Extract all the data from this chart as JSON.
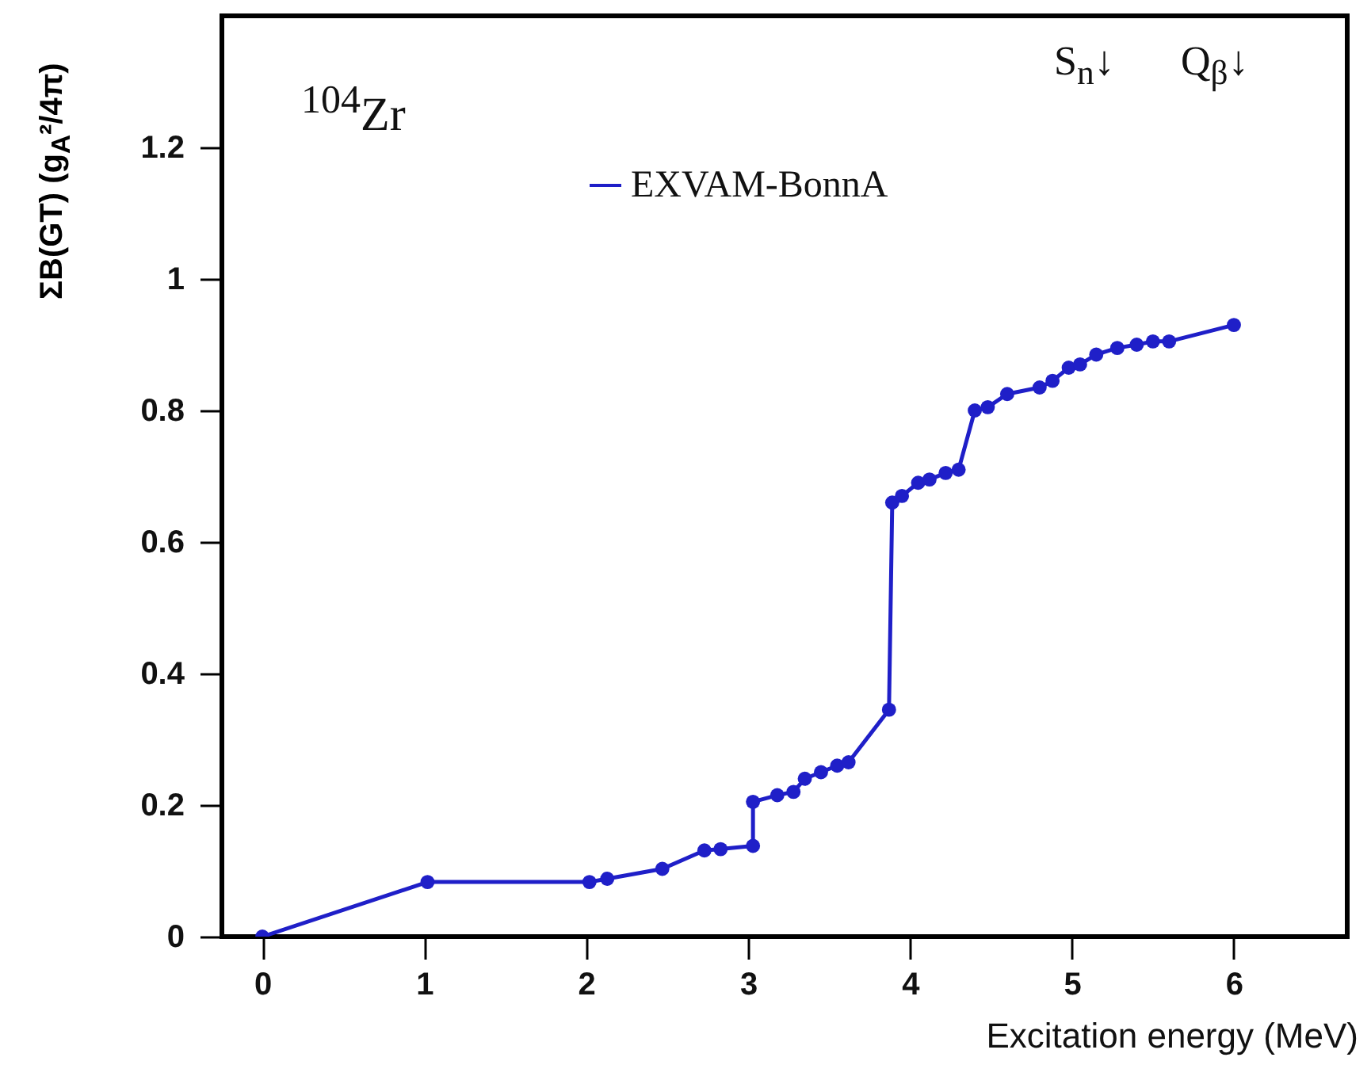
{
  "chart_data": {
    "type": "line",
    "xlabel": "Excitation energy (MeV)",
    "ylabel": "ΣB(GT) (g$_{A}$²/4π)",
    "annotations": [
      "$^{104}$Zr",
      "S$_{n}$↓",
      "Q$_{β}$↓"
    ],
    "x": [
      0,
      1.02,
      2.02,
      2.13,
      2.47,
      2.73,
      2.83,
      3.03,
      3.03,
      3.18,
      3.28,
      3.35,
      3.45,
      3.55,
      3.62,
      3.87,
      3.89,
      3.95,
      4.05,
      4.12,
      4.22,
      4.3,
      4.4,
      4.48,
      4.6,
      4.8,
      4.88,
      4.98,
      5.05,
      5.15,
      5.28,
      5.4,
      5.5,
      5.6,
      6.0
    ],
    "series": [
      {
        "name": "EXVAM-BonnA",
        "color": "#1f1fc8",
        "values": [
          0,
          0.083,
          0.083,
          0.088,
          0.103,
          0.131,
          0.133,
          0.138,
          0.205,
          0.215,
          0.22,
          0.24,
          0.25,
          0.26,
          0.265,
          0.345,
          0.66,
          0.67,
          0.69,
          0.695,
          0.705,
          0.71,
          0.8,
          0.805,
          0.825,
          0.835,
          0.845,
          0.865,
          0.87,
          0.885,
          0.895,
          0.9,
          0.905,
          0.905,
          0.93
        ]
      }
    ],
    "xlim": [
      -0.25,
      6.7
    ],
    "xticks": [
      0,
      1,
      2,
      3,
      4,
      5,
      6
    ],
    "ylim": [
      0,
      1.4
    ],
    "yticks": [
      0,
      0.2,
      0.4,
      0.6,
      0.8,
      1,
      1.2
    ],
    "grid": false,
    "legend": "top",
    "marker": "circle",
    "line_style": "solid"
  }
}
